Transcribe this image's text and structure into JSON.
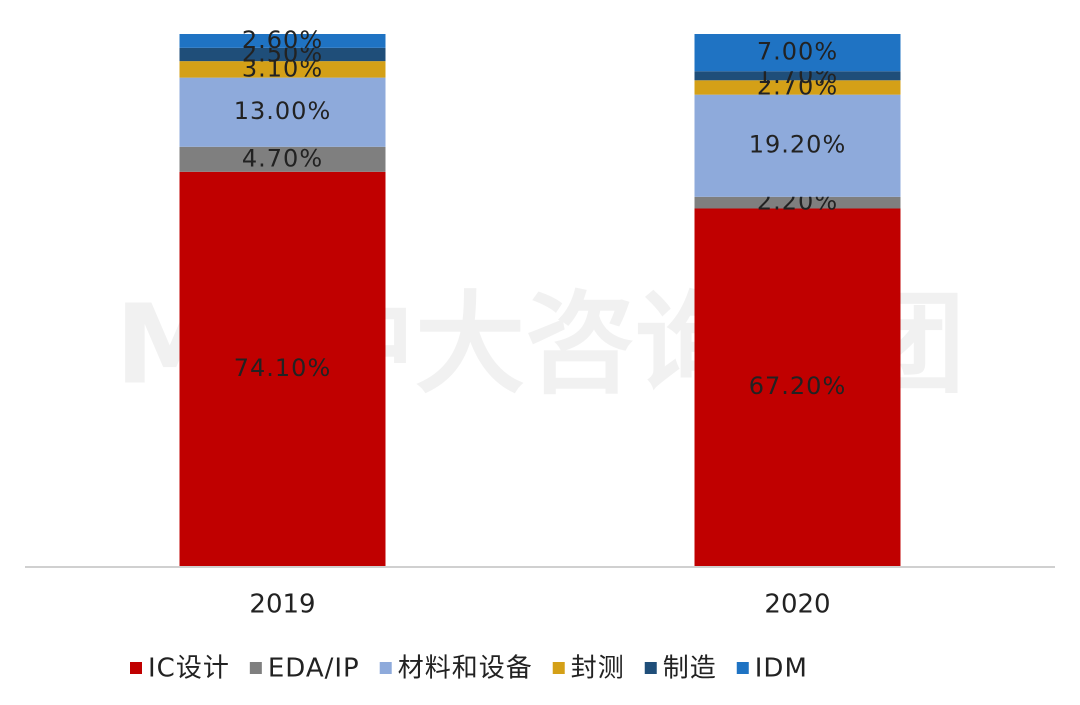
{
  "chart_data": {
    "type": "stacked_bar",
    "watermark": "MP中大咨询集团",
    "categories": [
      "2019",
      "2020"
    ],
    "series": [
      {
        "name": "IC设计",
        "color": "#c00000",
        "values": [
          74.1,
          67.2
        ],
        "value_labels": [
          "74.10%",
          "67.20%"
        ]
      },
      {
        "name": "EDA/IP",
        "color": "#7f7f7f",
        "values": [
          4.7,
          2.2
        ],
        "value_labels": [
          "4.70%",
          "2.20%"
        ]
      },
      {
        "name": "材料和设备",
        "color": "#8eaadb",
        "values": [
          13.0,
          19.2
        ],
        "value_labels": [
          "13.00%",
          "19.20%"
        ]
      },
      {
        "name": "封测",
        "color": "#d4a017",
        "values": [
          3.1,
          2.7
        ],
        "value_labels": [
          "3.10%",
          "2.70%"
        ]
      },
      {
        "name": "制造",
        "color": "#1f4e79",
        "values": [
          2.5,
          1.7
        ],
        "value_labels": [
          "2.50%",
          "1.70%"
        ]
      },
      {
        "name": "IDM",
        "color": "#1f73c3",
        "values": [
          2.6,
          7.0
        ],
        "value_labels": [
          "2.60%",
          "7.00%"
        ]
      }
    ]
  }
}
